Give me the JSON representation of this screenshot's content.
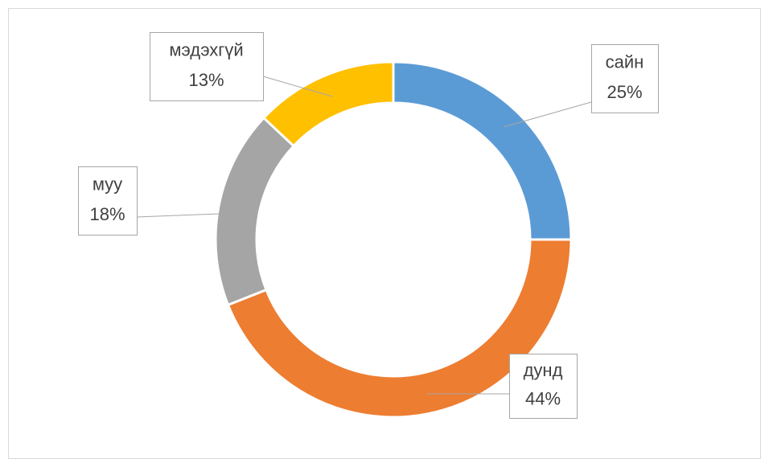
{
  "chart_data": {
    "type": "donut",
    "categories": [
      "сайн",
      "дунд",
      "муу",
      "мэдэхгүй"
    ],
    "values": [
      25,
      44,
      18,
      13
    ],
    "value_labels": [
      "25%",
      "44%",
      "18%",
      "13%"
    ],
    "colors": [
      "#5b9bd5",
      "#ed7d31",
      "#a5a5a5",
      "#ffc000"
    ]
  }
}
